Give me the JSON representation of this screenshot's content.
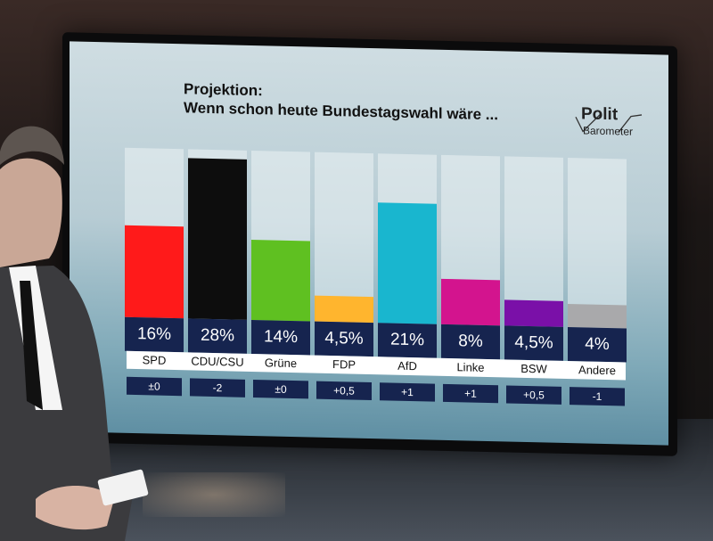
{
  "title": "Projektion:",
  "subtitle": "Wenn schon heute Bundestagswahl wäre ...",
  "logo": {
    "top": "Polit",
    "bottom": "Barometer"
  },
  "chart_data": {
    "type": "bar",
    "categories": [
      "SPD",
      "CDU/CSU",
      "Grüne",
      "FDP",
      "AfD",
      "Linke",
      "BSW",
      "Andere"
    ],
    "values": [
      16,
      28,
      14,
      4.5,
      21,
      8,
      4.5,
      4
    ],
    "value_labels": [
      "16%",
      "28%",
      "14%",
      "4,5%",
      "21%",
      "8%",
      "4,5%",
      "4%"
    ],
    "changes": [
      "±0",
      "-2",
      "±0",
      "+0,5",
      "+1",
      "+1",
      "+0,5",
      "-1"
    ],
    "colors": [
      "#ff1a1a",
      "#0d0d0d",
      "#5fc021",
      "#ffb52e",
      "#19b6cf",
      "#d3148e",
      "#7a10a8",
      "#a9a9ab"
    ],
    "ylim": [
      0,
      28
    ]
  }
}
